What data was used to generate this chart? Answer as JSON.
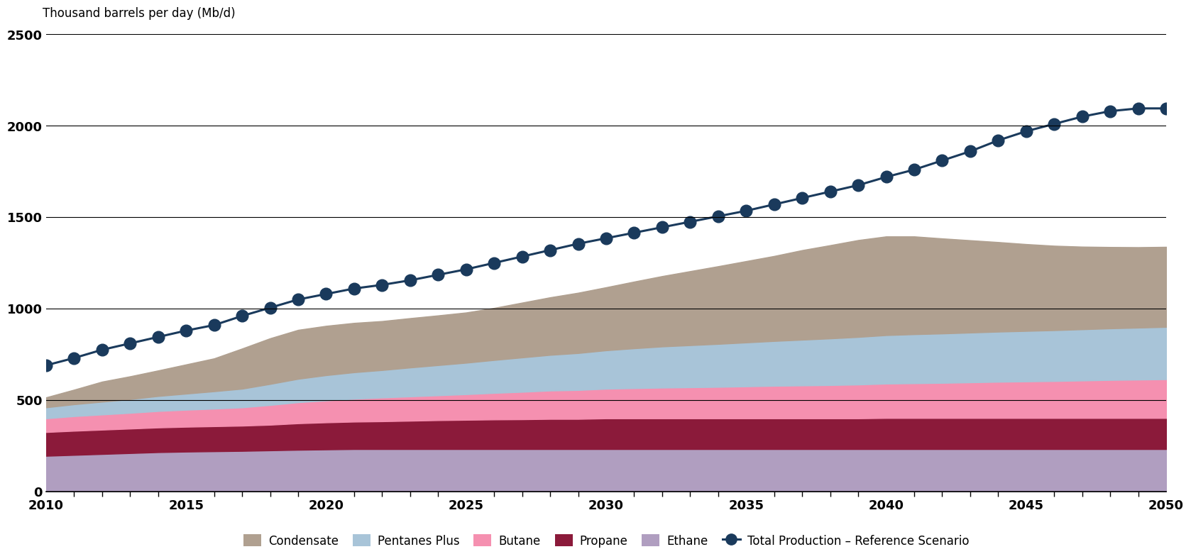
{
  "years": [
    2010,
    2011,
    2012,
    2013,
    2014,
    2015,
    2016,
    2017,
    2018,
    2019,
    2020,
    2021,
    2022,
    2023,
    2024,
    2025,
    2026,
    2027,
    2028,
    2029,
    2030,
    2031,
    2032,
    2033,
    2034,
    2035,
    2036,
    2037,
    2038,
    2039,
    2040,
    2041,
    2042,
    2043,
    2044,
    2045,
    2046,
    2047,
    2048,
    2049,
    2050
  ],
  "ethane": [
    195,
    200,
    205,
    210,
    215,
    218,
    220,
    222,
    225,
    228,
    230,
    232,
    232,
    232,
    232,
    232,
    232,
    232,
    232,
    232,
    232,
    232,
    232,
    232,
    232,
    232,
    232,
    232,
    232,
    232,
    232,
    232,
    232,
    232,
    232,
    232,
    232,
    232,
    232,
    232,
    232
  ],
  "propane": [
    130,
    132,
    133,
    134,
    135,
    136,
    137,
    138,
    140,
    145,
    148,
    150,
    152,
    155,
    158,
    160,
    162,
    163,
    165,
    165,
    168,
    168,
    168,
    168,
    168,
    168,
    168,
    168,
    168,
    168,
    170,
    170,
    170,
    170,
    170,
    170,
    170,
    170,
    170,
    170,
    170
  ],
  "butane": [
    75,
    80,
    83,
    86,
    90,
    93,
    96,
    100,
    108,
    115,
    120,
    125,
    130,
    133,
    136,
    140,
    145,
    150,
    155,
    158,
    162,
    165,
    168,
    170,
    172,
    175,
    178,
    180,
    182,
    185,
    188,
    190,
    192,
    195,
    198,
    200,
    202,
    205,
    208,
    210,
    212
  ],
  "pentanes_plus": [
    60,
    65,
    70,
    75,
    82,
    88,
    95,
    102,
    115,
    128,
    138,
    145,
    150,
    158,
    165,
    172,
    180,
    188,
    195,
    202,
    210,
    218,
    225,
    230,
    235,
    240,
    245,
    250,
    255,
    260,
    265,
    268,
    270,
    272,
    274,
    276,
    278,
    280,
    282,
    284,
    286
  ],
  "condensate": [
    55,
    80,
    110,
    125,
    140,
    160,
    180,
    220,
    250,
    268,
    270,
    270,
    268,
    270,
    272,
    275,
    285,
    300,
    315,
    330,
    345,
    365,
    385,
    405,
    425,
    445,
    465,
    490,
    510,
    530,
    540,
    535,
    520,
    505,
    490,
    475,
    462,
    452,
    445,
    440,
    438
  ],
  "total_production": [
    690,
    730,
    775,
    810,
    845,
    880,
    910,
    960,
    1005,
    1050,
    1080,
    1110,
    1130,
    1155,
    1185,
    1215,
    1250,
    1285,
    1320,
    1355,
    1385,
    1415,
    1445,
    1475,
    1505,
    1535,
    1570,
    1605,
    1640,
    1675,
    1720,
    1760,
    1810,
    1860,
    1920,
    1970,
    2010,
    2050,
    2080,
    2095,
    2095
  ],
  "colors": {
    "ethane": "#b09ec0",
    "propane": "#8b1a3a",
    "butane": "#f590b0",
    "pentanes_plus": "#a8c4d8",
    "condensate": "#b0a090"
  },
  "line_color": "#1a3a5c",
  "ylabel": "Thousand barrels per day (Mb/d)",
  "ylim": [
    0,
    2500
  ],
  "yticks": [
    0,
    500,
    1000,
    1500,
    2000,
    2500
  ],
  "legend_labels": [
    "Condensate",
    "Pentanes Plus",
    "Butane",
    "Propane",
    "Ethane",
    "Total Production – Reference Scenario"
  ],
  "background_color": "#ffffff"
}
